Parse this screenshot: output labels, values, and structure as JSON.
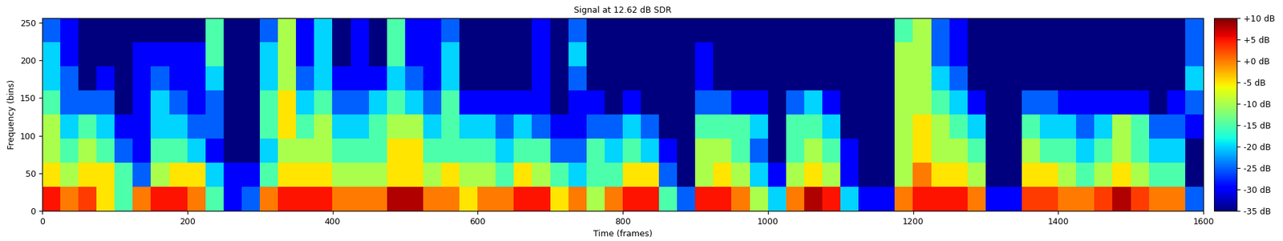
{
  "chart_data": {
    "type": "heatmap",
    "title": "Signal at 12.62 dB SDR",
    "x_label": "Time (frames)",
    "y_label": "Frequency (bins)",
    "xlim": [
      0,
      1600
    ],
    "xticks": [
      0,
      200,
      400,
      600,
      800,
      1000,
      1200,
      1400,
      1600
    ],
    "ylim": [
      0,
      256
    ],
    "yticks": [
      0,
      50,
      100,
      150,
      200,
      250
    ],
    "colorbar_range": [
      -35,
      10
    ],
    "colorbar_ticks": [
      {
        "value": 10,
        "label": "+10 dB"
      },
      {
        "value": 5,
        "label": "+5 dB"
      },
      {
        "value": 0,
        "label": "+0 dB"
      },
      {
        "value": -5,
        "label": "-5 dB"
      },
      {
        "value": -10,
        "label": "-10 dB"
      },
      {
        "value": -15,
        "label": "-15 dB"
      },
      {
        "value": -20,
        "label": "-20 dB"
      },
      {
        "value": -25,
        "label": "-25 dB"
      },
      {
        "value": -30,
        "label": "-30 dB"
      },
      {
        "value": -35,
        "label": "-35 dB"
      }
    ],
    "cells": [
      [
        5,
        0,
        3,
        -5,
        -15,
        0,
        5,
        5,
        0,
        -15,
        -30,
        -25,
        0,
        5,
        5,
        5,
        0,
        0,
        0,
        8,
        8,
        0,
        0,
        -5,
        0,
        0,
        5,
        5,
        -5,
        0,
        -10,
        0,
        5,
        5,
        -15,
        -25,
        5,
        5,
        0,
        -10,
        -20,
        0,
        8,
        5,
        -20,
        -30,
        -30,
        0,
        5,
        5,
        5,
        0,
        -30,
        -30,
        3,
        3,
        0,
        0,
        3,
        8,
        3,
        0,
        0,
        -25
      ],
      [
        -5,
        -10,
        -5,
        -5,
        -15,
        -25,
        -10,
        -5,
        -5,
        -20,
        -30,
        -30,
        -15,
        -5,
        -5,
        -5,
        -10,
        -10,
        -10,
        -5,
        -5,
        -10,
        -5,
        -10,
        -10,
        -15,
        -5,
        -10,
        -15,
        -20,
        -15,
        -15,
        -5,
        -5,
        -25,
        -35,
        -10,
        -5,
        -10,
        -20,
        -30,
        -10,
        -5,
        -10,
        -30,
        -35,
        -35,
        -10,
        0,
        -5,
        -5,
        -10,
        -35,
        -35,
        -5,
        -5,
        -10,
        -15,
        -10,
        -5,
        -10,
        -15,
        -15,
        -35
      ],
      [
        -10,
        -15,
        -10,
        -15,
        -25,
        -30,
        -15,
        -15,
        -20,
        -30,
        -35,
        -35,
        -20,
        -10,
        -10,
        -10,
        -15,
        -15,
        -15,
        -5,
        -5,
        -15,
        -15,
        -15,
        -15,
        -20,
        -15,
        -15,
        -25,
        -25,
        -15,
        -20,
        -15,
        -20,
        -30,
        -35,
        -10,
        -10,
        -15,
        -25,
        -35,
        -15,
        -10,
        -15,
        -30,
        -35,
        -35,
        -10,
        -5,
        -10,
        -10,
        -15,
        -35,
        -35,
        -10,
        -15,
        -15,
        -20,
        -15,
        -10,
        -15,
        -20,
        -20,
        -35
      ],
      [
        -10,
        -20,
        -15,
        -20,
        -30,
        -30,
        -20,
        -20,
        -25,
        -25,
        -35,
        -35,
        -15,
        -5,
        -15,
        -10,
        -20,
        -20,
        -15,
        -10,
        -10,
        -20,
        -15,
        -20,
        -20,
        -25,
        -20,
        -25,
        -30,
        -30,
        -25,
        -25,
        -20,
        -25,
        -35,
        -35,
        -15,
        -15,
        -15,
        -20,
        -35,
        -15,
        -15,
        -20,
        -35,
        -35,
        -35,
        -10,
        -5,
        -10,
        -15,
        -20,
        -35,
        -35,
        -15,
        -20,
        -20,
        -25,
        -20,
        -10,
        -15,
        -25,
        -25,
        -30
      ],
      [
        -15,
        -25,
        -25,
        -25,
        -35,
        -30,
        -20,
        -25,
        -30,
        -25,
        -35,
        -35,
        -15,
        -5,
        -20,
        -15,
        -25,
        -25,
        -20,
        -15,
        -20,
        -25,
        -15,
        -30,
        -30,
        -30,
        -30,
        -30,
        -35,
        -30,
        -30,
        -35,
        -30,
        -35,
        -35,
        -35,
        -25,
        -25,
        -30,
        -30,
        -35,
        -25,
        -20,
        -30,
        -35,
        -35,
        -35,
        -10,
        -10,
        -15,
        -20,
        -30,
        -35,
        -35,
        -25,
        -25,
        -30,
        -30,
        -30,
        -30,
        -30,
        -35,
        -30,
        -25
      ],
      [
        -20,
        -25,
        -35,
        -30,
        -35,
        -30,
        -25,
        -30,
        -30,
        -20,
        -35,
        -35,
        -20,
        -10,
        -25,
        -20,
        -30,
        -30,
        -30,
        -20,
        -25,
        -30,
        -20,
        -35,
        -35,
        -35,
        -35,
        -30,
        -35,
        -25,
        -35,
        -35,
        -35,
        -35,
        -35,
        -35,
        -30,
        -35,
        -35,
        -35,
        -35,
        -35,
        -35,
        -35,
        -35,
        -35,
        -35,
        -10,
        -10,
        -20,
        -25,
        -35,
        -35,
        -35,
        -35,
        -35,
        -35,
        -35,
        -35,
        -35,
        -35,
        -35,
        -35,
        -20
      ],
      [
        -20,
        -30,
        -35,
        -35,
        -35,
        -30,
        -30,
        -30,
        -30,
        -15,
        -35,
        -35,
        -20,
        -10,
        -30,
        -20,
        -35,
        -30,
        -35,
        -15,
        -30,
        -30,
        -20,
        -35,
        -35,
        -35,
        -35,
        -30,
        -35,
        -20,
        -35,
        -35,
        -35,
        -35,
        -35,
        -35,
        -30,
        -35,
        -35,
        -35,
        -35,
        -35,
        -35,
        -35,
        -35,
        -35,
        -35,
        -10,
        -10,
        -25,
        -30,
        -35,
        -35,
        -35,
        -35,
        -35,
        -35,
        -35,
        -35,
        -35,
        -35,
        -35,
        -35,
        -25
      ],
      [
        -25,
        -30,
        -35,
        -35,
        -35,
        -35,
        -35,
        -35,
        -35,
        -15,
        -35,
        -35,
        -25,
        -10,
        -30,
        -20,
        -35,
        -30,
        -35,
        -15,
        -30,
        -30,
        -25,
        -35,
        -35,
        -35,
        -35,
        -30,
        -35,
        -25,
        -35,
        -35,
        -35,
        -35,
        -35,
        -35,
        -35,
        -35,
        -35,
        -35,
        -35,
        -35,
        -35,
        -35,
        -35,
        -35,
        -35,
        -15,
        -10,
        -25,
        -30,
        -35,
        -35,
        -35,
        -35,
        -35,
        -35,
        -35,
        -35,
        -35,
        -35,
        -35,
        -35,
        -25
      ]
    ]
  }
}
